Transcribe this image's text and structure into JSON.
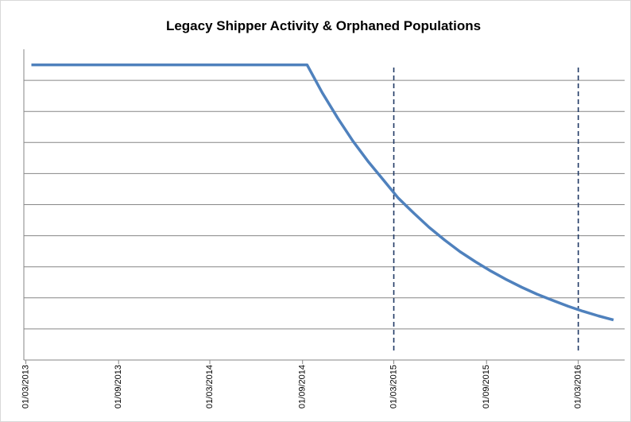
{
  "chart_data": {
    "type": "line",
    "title": "Legacy Shipper Activity & Orphaned Populations",
    "x": [
      "2013-03-12",
      "2014-09-10",
      "2014-10-10",
      "2014-11-10",
      "2014-12-10",
      "2015-01-10",
      "2015-02-10",
      "2015-03-10",
      "2015-04-10",
      "2015-05-10",
      "2015-06-10",
      "2015-07-10",
      "2015-08-10",
      "2015-09-10",
      "2015-10-10",
      "2015-11-10",
      "2015-12-10",
      "2016-01-10",
      "2016-02-10",
      "2016-03-10",
      "2016-04-10",
      "2016-05-10"
    ],
    "series": [
      {
        "color": "#4f81bd",
        "values": [
          9.5,
          9.5,
          8.6,
          7.78,
          7.04,
          6.37,
          5.76,
          5.21,
          4.72,
          4.27,
          3.86,
          3.49,
          3.16,
          2.86,
          2.59,
          2.34,
          2.12,
          1.92,
          1.73,
          1.57,
          1.42,
          1.29
        ]
      }
    ],
    "xlim": [
      "2013-02-25",
      "2016-06-01"
    ],
    "xticks": [
      {
        "value": "2013-03-01",
        "label": "01/03/2013"
      },
      {
        "value": "2013-09-01",
        "label": "01/09/2013"
      },
      {
        "value": "2014-03-01",
        "label": "01/03/2014"
      },
      {
        "value": "2014-09-01",
        "label": "01/09/2014"
      },
      {
        "value": "2015-03-01",
        "label": "01/03/2015"
      },
      {
        "value": "2015-09-01",
        "label": "01/09/2015"
      },
      {
        "value": "2016-03-01",
        "label": "01/03/2016"
      }
    ],
    "ylim": [
      0,
      10
    ],
    "yticks": [
      0,
      1,
      2,
      3,
      4,
      5,
      6,
      7,
      8,
      9
    ],
    "grid": true,
    "markers": {
      "x": [
        "2015-03-01",
        "2016-03-01"
      ],
      "color": "#1f3864"
    }
  }
}
